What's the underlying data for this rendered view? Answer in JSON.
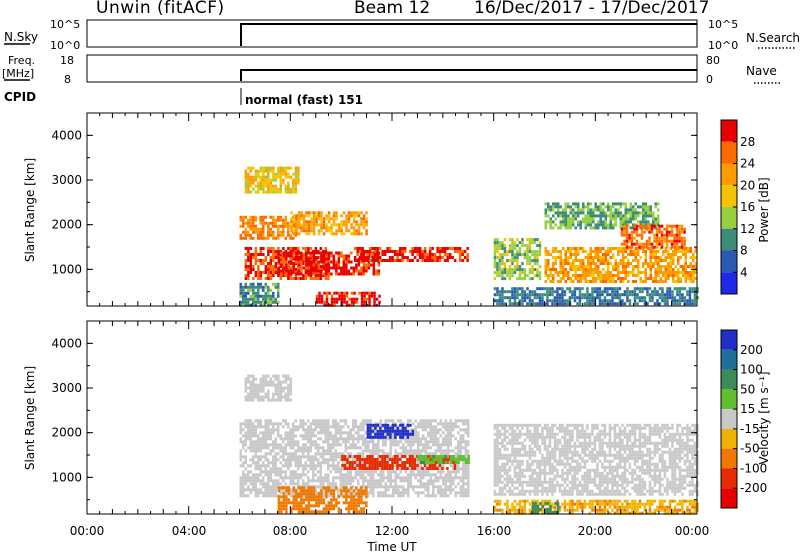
{
  "header": {
    "station": "Unwin (fitACF)",
    "beam": "Beam 12",
    "date_range": "16/Dec/2017 - 17/Dec/2017"
  },
  "top_panels": {
    "nsky_label": "N.Sky",
    "nsky_ticks": [
      "10^5",
      "10^0"
    ],
    "nsearch_label": "N.Search",
    "nsearch_ticks": [
      "10^5",
      "10^0"
    ],
    "freq_label": "Freq.",
    "freq_unit": "[MHz]",
    "freq_ticks": [
      "18",
      "8"
    ],
    "nave_label": "Nave",
    "nave_ticks": [
      "80",
      "0"
    ],
    "cpid_label": "CPID",
    "cpid_value": "normal (fast) 151"
  },
  "colorbars": {
    "power": {
      "label": "Power [dB]",
      "ticks": [
        "28",
        "24",
        "20",
        "16",
        "12",
        "8",
        "4"
      ],
      "colors": [
        "#e80000",
        "#ff6a00",
        "#ff9a00",
        "#f5c400",
        "#96d040",
        "#3c8c7a",
        "#2a5ab4",
        "#1e2ae6"
      ]
    },
    "velocity": {
      "label": "Velocity [m s⁻¹]",
      "ticks": [
        "200",
        "100",
        "50",
        "15",
        "-15",
        "-50",
        "-100",
        "-200"
      ],
      "colors": [
        "#1e30c8",
        "#1f6f9a",
        "#3c8c5a",
        "#5fbf2e",
        "#c8c8c8",
        "#f0b400",
        "#f07800",
        "#e82a00",
        "#e80000"
      ]
    }
  },
  "axes": {
    "ylabel": "Slant Range [km]",
    "yticks": [
      "4000",
      "3000",
      "2000",
      "1000"
    ],
    "xticks": [
      "00:00",
      "04:00",
      "08:00",
      "12:00",
      "16:00",
      "20:00",
      "00:00"
    ],
    "xlabel": "Time UT"
  },
  "chart_data": [
    {
      "type": "heatmap",
      "name": "Power",
      "xlabel": "",
      "ylabel": "Slant Range [km]",
      "x_range_hours": [
        0,
        24
      ],
      "ylim": [
        180,
        4500
      ],
      "colorbar_label": "Power [dB]",
      "patches": [
        {
          "t0": 6.0,
          "t1": 8.2,
          "r0": 1700,
          "r1": 2200,
          "v": 22
        },
        {
          "t0": 6.2,
          "t1": 9.5,
          "r0": 800,
          "r1": 1500,
          "v": 26
        },
        {
          "t0": 7.5,
          "t1": 11.5,
          "r0": 900,
          "r1": 1400,
          "v": 28
        },
        {
          "t0": 9.0,
          "t1": 11.5,
          "r0": 180,
          "r1": 500,
          "v": 28
        },
        {
          "t0": 10.5,
          "t1": 15.0,
          "r0": 1200,
          "r1": 1500,
          "v": 28
        },
        {
          "t0": 6.0,
          "t1": 7.5,
          "r0": 200,
          "r1": 700,
          "v": 8
        },
        {
          "t0": 6.2,
          "t1": 8.3,
          "r0": 2700,
          "r1": 3300,
          "v": 16
        },
        {
          "t0": 8.0,
          "t1": 11.0,
          "r0": 1800,
          "r1": 2300,
          "v": 20
        },
        {
          "t0": 16.0,
          "t1": 17.8,
          "r0": 800,
          "r1": 1700,
          "v": 12
        },
        {
          "t0": 16.0,
          "t1": 24.0,
          "r0": 200,
          "r1": 600,
          "v": 6
        },
        {
          "t0": 18.0,
          "t1": 24.0,
          "r0": 700,
          "r1": 1500,
          "v": 20
        },
        {
          "t0": 18.0,
          "t1": 22.5,
          "r0": 1900,
          "r1": 2500,
          "v": 10
        },
        {
          "t0": 21.0,
          "t1": 23.5,
          "r0": 1500,
          "r1": 2000,
          "v": 24
        }
      ]
    },
    {
      "type": "heatmap",
      "name": "Velocity",
      "xlabel": "Time UT",
      "ylabel": "Slant Range [km]",
      "x_range_hours": [
        0,
        24
      ],
      "ylim": [
        180,
        4500
      ],
      "colorbar_label": "Velocity [m s⁻¹]",
      "patches": [
        {
          "t0": 6.0,
          "t1": 15.0,
          "r0": 600,
          "r1": 2300,
          "v": 0
        },
        {
          "t0": 6.2,
          "t1": 8.0,
          "r0": 2700,
          "r1": 3300,
          "v": 0
        },
        {
          "t0": 7.5,
          "t1": 11.0,
          "r0": 200,
          "r1": 800,
          "v": -50
        },
        {
          "t0": 10.0,
          "t1": 14.5,
          "r0": 1200,
          "r1": 1500,
          "v": -100
        },
        {
          "t0": 13.0,
          "t1": 15.0,
          "r0": 1300,
          "r1": 1500,
          "v": 30
        },
        {
          "t0": 11.0,
          "t1": 12.8,
          "r0": 1900,
          "r1": 2200,
          "v": 200
        },
        {
          "t0": 16.0,
          "t1": 24.0,
          "r0": 600,
          "r1": 2200,
          "v": 0
        },
        {
          "t0": 16.0,
          "t1": 24.0,
          "r0": 200,
          "r1": 500,
          "v": -30
        },
        {
          "t0": 17.5,
          "t1": 18.5,
          "r0": 200,
          "r1": 450,
          "v": 50
        }
      ]
    }
  ]
}
